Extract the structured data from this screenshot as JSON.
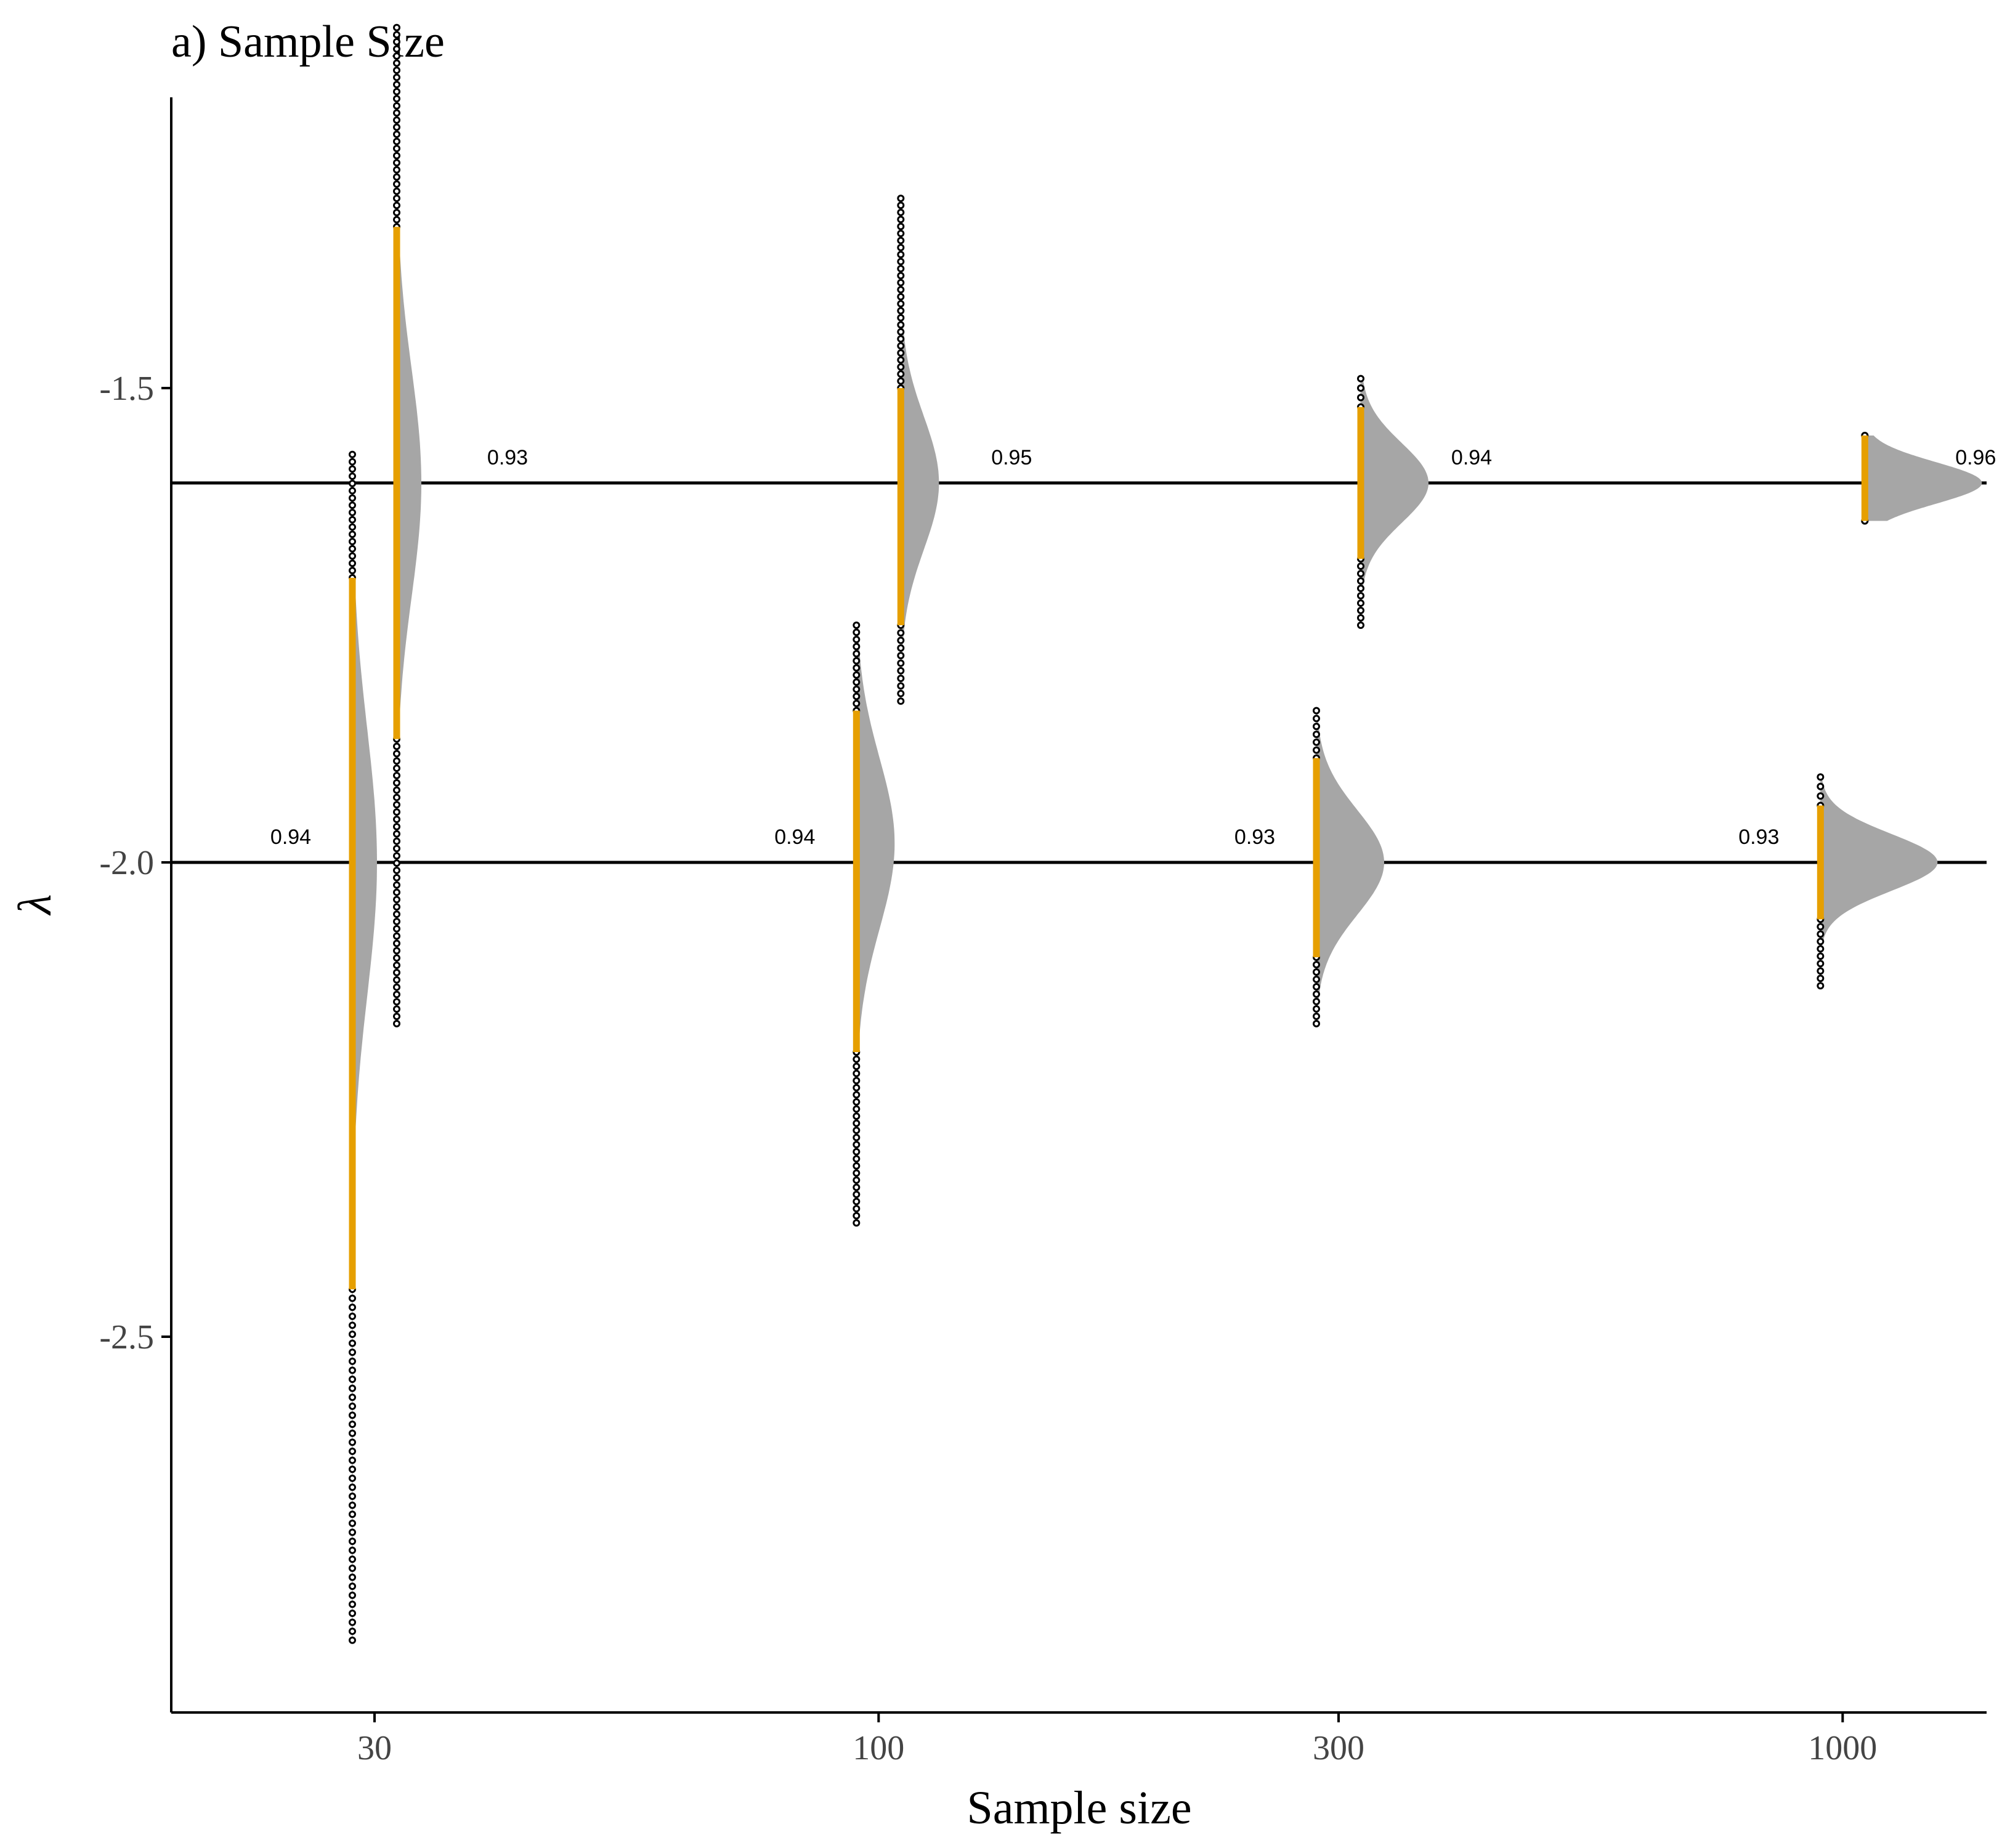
{
  "chart_data": {
    "type": "raincloud",
    "title": "a) Sample Size",
    "xlabel": "Sample size",
    "ylabel": "λ",
    "x_scale": "log",
    "x_ticks": [
      30,
      100,
      300,
      1000
    ],
    "y_ticks": [
      -1.5,
      -2.0,
      -2.5
    ],
    "y_tick_labels": [
      "-1.5",
      "-2.0",
      "-2.5"
    ],
    "x_tick_labels": [
      "30",
      "100",
      "300",
      "1000"
    ],
    "ylim": [
      -2.89,
      -1.19
    ],
    "reference_lines": [
      -1.6,
      -2.0
    ],
    "colors": {
      "density": "#a6a6a6",
      "interval": "#e69f00",
      "outlier": "#000000",
      "reference_line": "#000000"
    },
    "groups": [
      {
        "n": 30,
        "true_lambda": -2.0,
        "mean": -2.0,
        "sd": 0.14,
        "interval": [
          -1.7,
          -2.45
        ],
        "range": [
          -1.57,
          -2.82
        ],
        "coverage": "0.94"
      },
      {
        "n": 30,
        "true_lambda": -1.6,
        "mean": -1.6,
        "sd": 0.12,
        "interval": [
          -1.33,
          -1.87
        ],
        "range": [
          -1.12,
          -2.17
        ],
        "coverage": "0.93"
      },
      {
        "n": 100,
        "true_lambda": -2.0,
        "mean": -1.98,
        "sd": 0.09,
        "interval": [
          -1.84,
          -2.2
        ],
        "range": [
          -1.75,
          -2.38
        ],
        "coverage": "0.94"
      },
      {
        "n": 100,
        "true_lambda": -1.6,
        "mean": -1.6,
        "sd": 0.07,
        "interval": [
          -1.5,
          -1.75
        ],
        "range": [
          -1.3,
          -1.83
        ],
        "coverage": "0.95"
      },
      {
        "n": 300,
        "true_lambda": -2.0,
        "mean": -2.0,
        "sd": 0.055,
        "interval": [
          -1.89,
          -2.1
        ],
        "range": [
          -1.84,
          -2.17
        ],
        "coverage": "0.93"
      },
      {
        "n": 300,
        "true_lambda": -1.6,
        "mean": -1.6,
        "sd": 0.042,
        "interval": [
          -1.52,
          -1.68
        ],
        "range": [
          -1.49,
          -1.75
        ],
        "coverage": "0.94"
      },
      {
        "n": 1000,
        "true_lambda": -2.0,
        "mean": -2.0,
        "sd": 0.03,
        "interval": [
          -1.94,
          -2.06
        ],
        "range": [
          -1.91,
          -2.13
        ],
        "coverage": "0.93"
      },
      {
        "n": 1000,
        "true_lambda": -1.6,
        "mean": -1.6,
        "sd": 0.022,
        "interval": [
          -1.55,
          -1.64
        ],
        "range": [
          -1.55,
          -1.64
        ],
        "coverage": "0.96"
      }
    ]
  }
}
